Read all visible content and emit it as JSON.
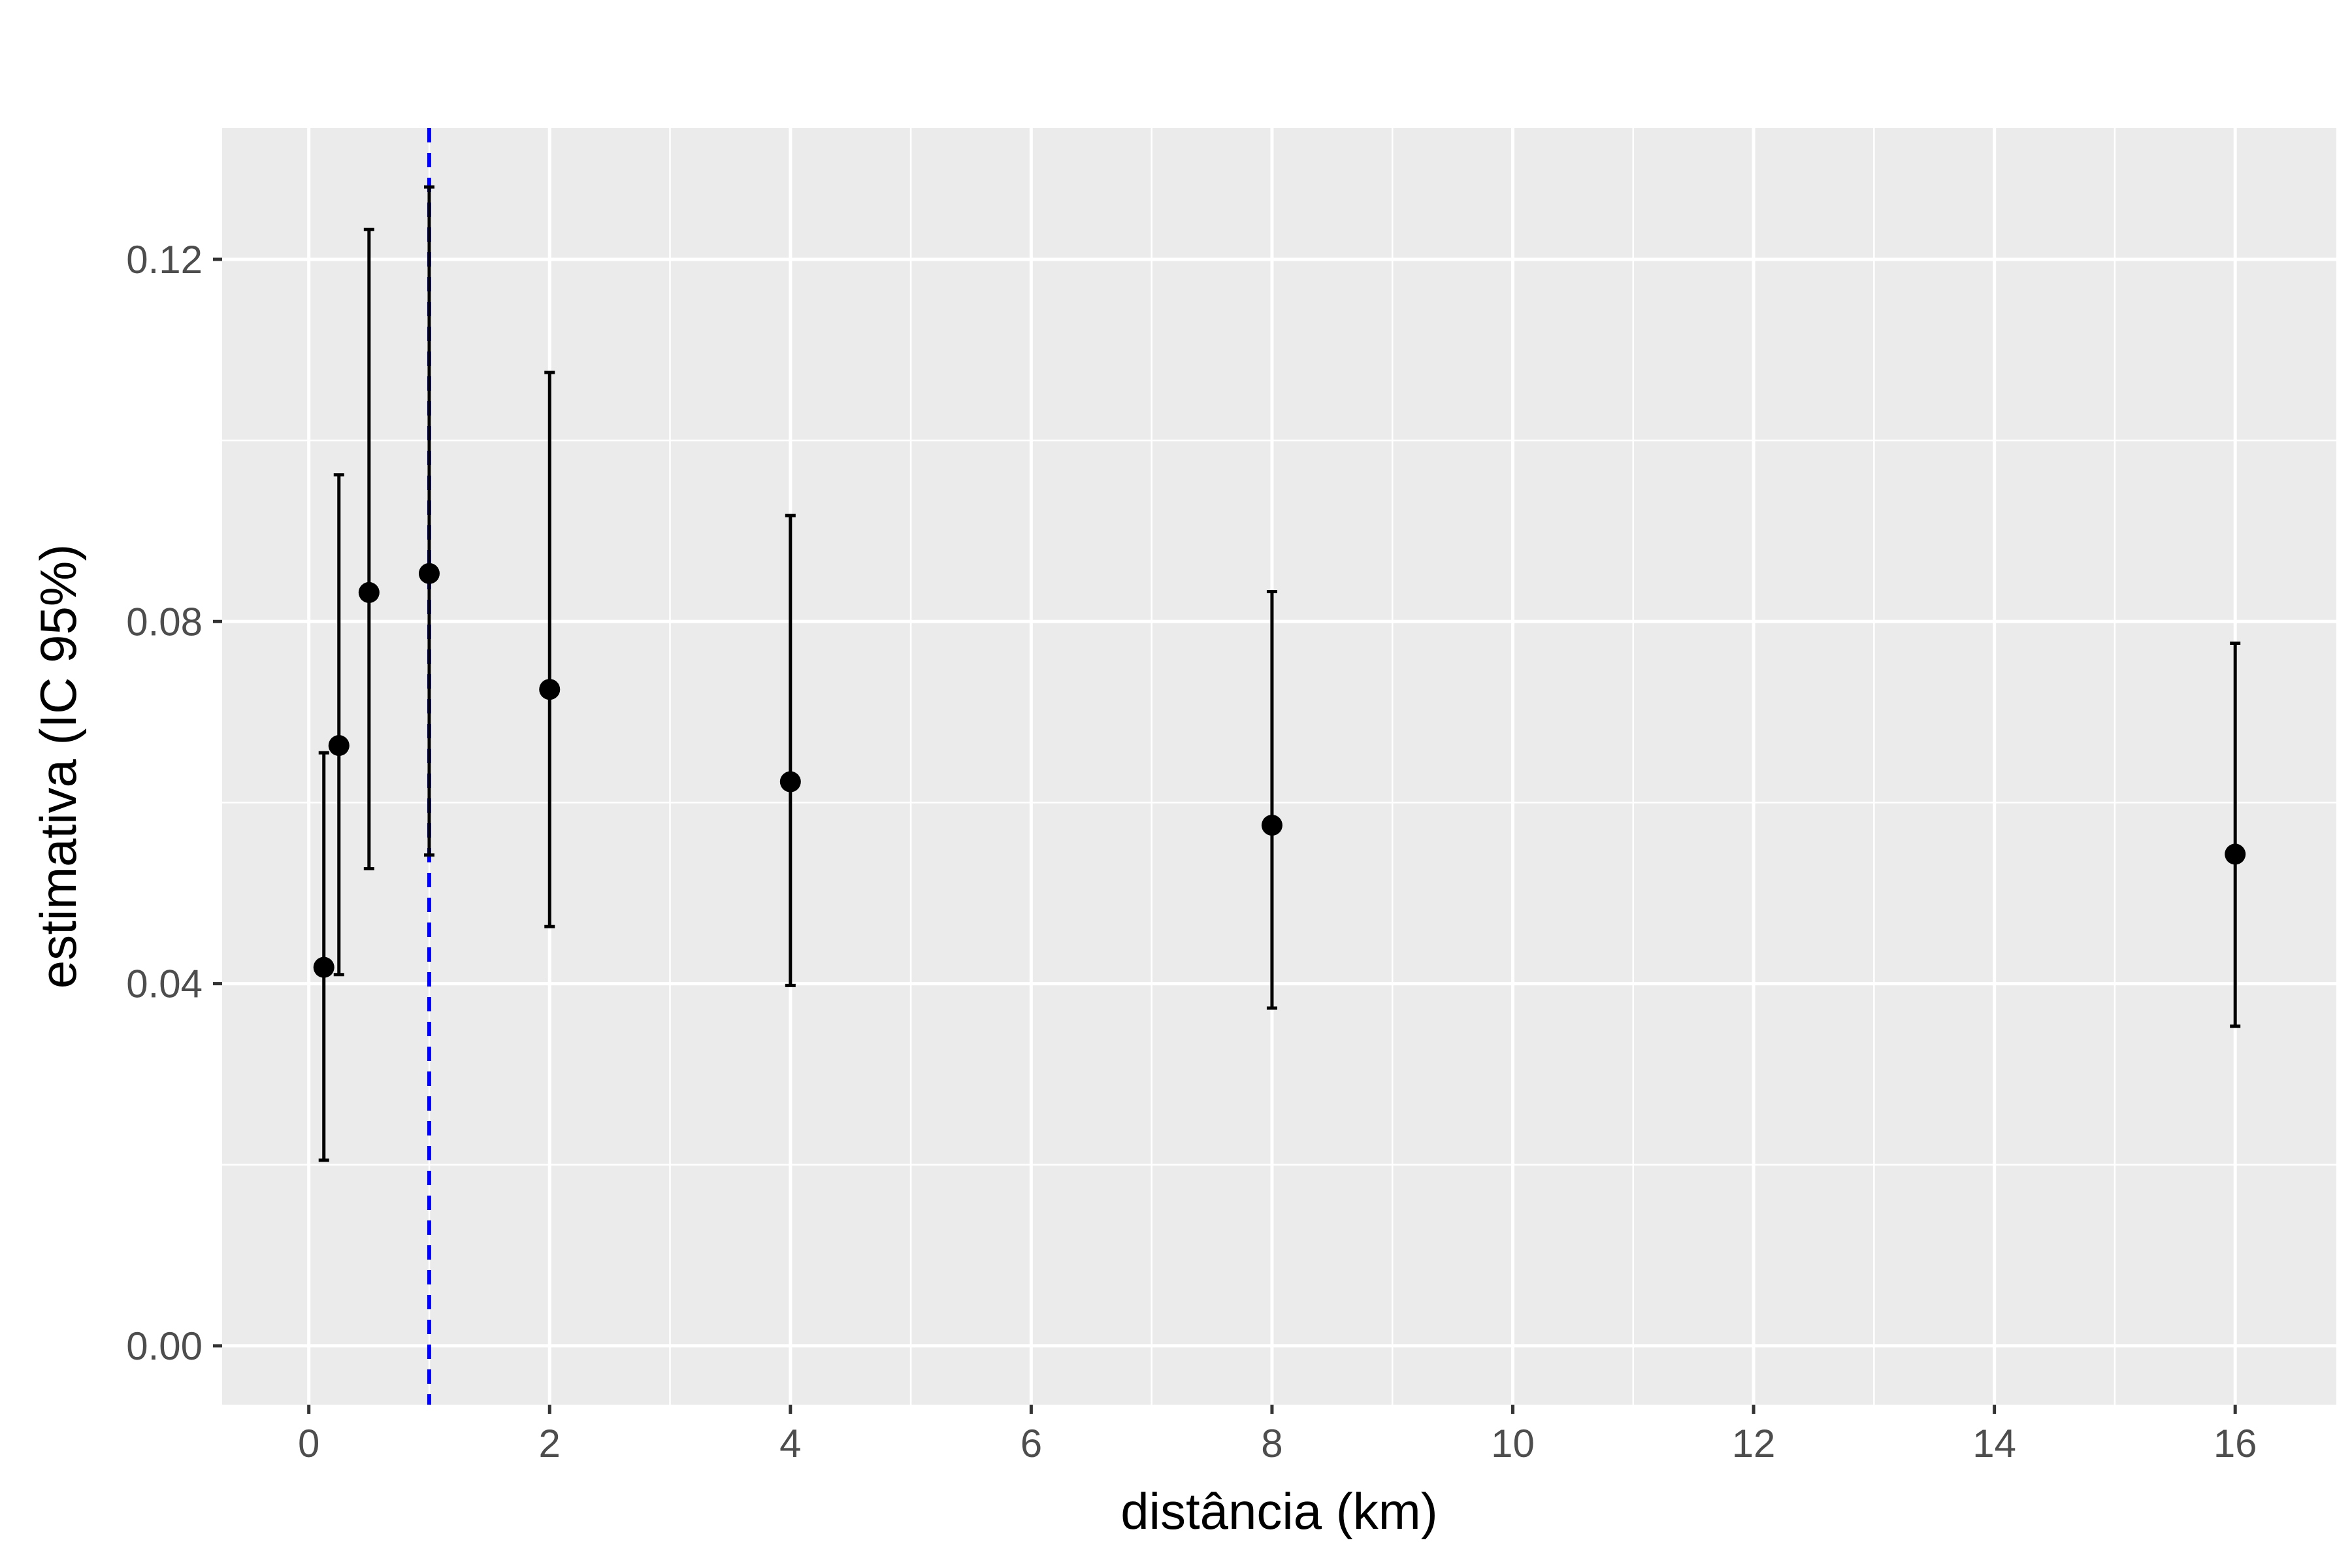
{
  "chart_data": {
    "type": "scatter",
    "title": "",
    "xlabel": "distância (km)",
    "ylabel": "estimativa (IC 95%)",
    "xlim": [
      -0.72,
      16.84
    ],
    "ylim": [
      -0.0065,
      0.1345
    ],
    "x_ticks": [
      0,
      2,
      4,
      6,
      8,
      10,
      12,
      14,
      16
    ],
    "y_ticks": [
      0.0,
      0.04,
      0.08,
      0.12
    ],
    "x_tick_labels": [
      "0",
      "2",
      "4",
      "6",
      "8",
      "10",
      "12",
      "14",
      "16"
    ],
    "y_tick_labels": [
      "0.00",
      "0.04",
      "0.08",
      "0.12"
    ],
    "grid": true,
    "reference_line": {
      "x": 1,
      "style": "dashed",
      "color": "#0000ff"
    },
    "points": [
      {
        "x": 0.125,
        "y": 0.0418,
        "lower": 0.0205,
        "upper": 0.0655
      },
      {
        "x": 0.25,
        "y": 0.0663,
        "lower": 0.041,
        "upper": 0.0962
      },
      {
        "x": 0.5,
        "y": 0.0832,
        "lower": 0.0527,
        "upper": 0.1233
      },
      {
        "x": 1,
        "y": 0.0853,
        "lower": 0.0542,
        "upper": 0.128
      },
      {
        "x": 2,
        "y": 0.0725,
        "lower": 0.0463,
        "upper": 0.1075
      },
      {
        "x": 4,
        "y": 0.0623,
        "lower": 0.0398,
        "upper": 0.0917
      },
      {
        "x": 8,
        "y": 0.0575,
        "lower": 0.0373,
        "upper": 0.0833
      },
      {
        "x": 16,
        "y": 0.0543,
        "lower": 0.0353,
        "upper": 0.0776
      }
    ],
    "colors": {
      "panel": "#ebebeb",
      "grid": "#ffffff",
      "points": "#000000",
      "reference": "#0000ff"
    }
  }
}
